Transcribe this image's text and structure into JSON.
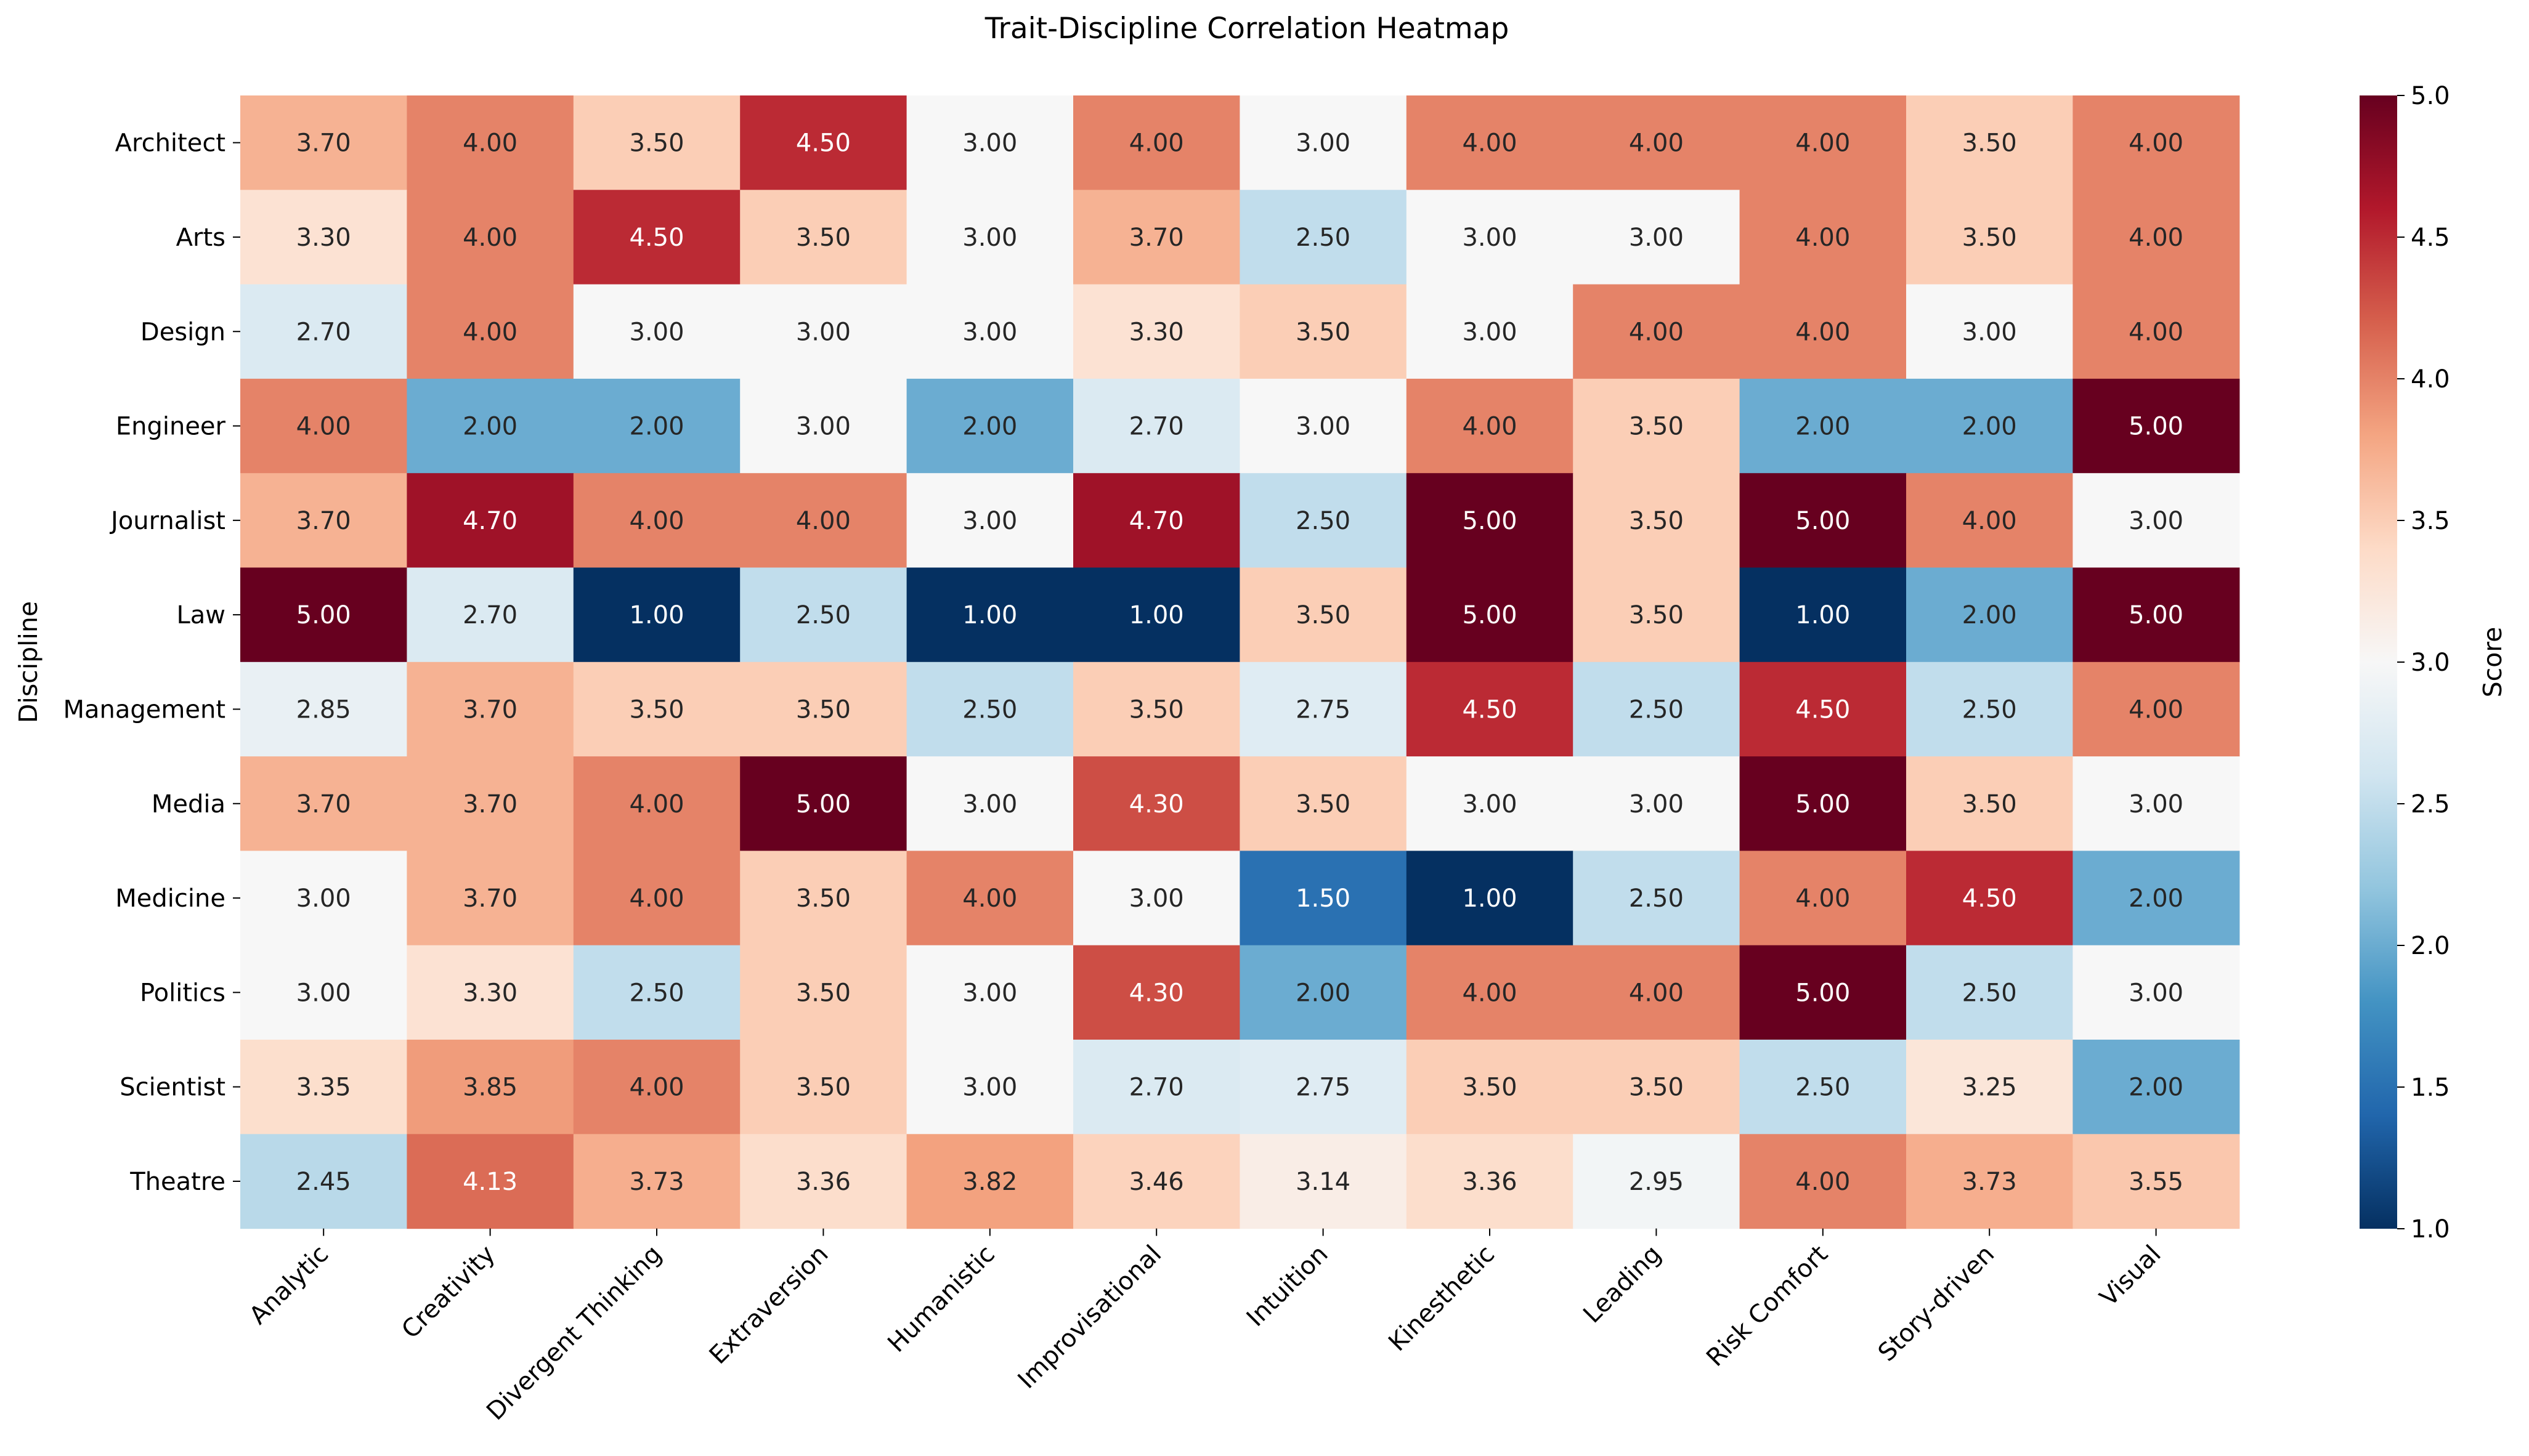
{
  "chart_data": {
    "type": "heatmap",
    "title": "Trait-Discipline Correlation Heatmap",
    "xlabel": "",
    "ylabel": "Discipline",
    "colorbar_label": "Score",
    "colormap": "RdBu_r",
    "vmin": 1.0,
    "vmax": 5.0,
    "colorbar_ticks": [
      "1.0",
      "1.5",
      "2.0",
      "2.5",
      "3.0",
      "3.5",
      "4.0",
      "4.5",
      "5.0"
    ],
    "x_categories": [
      "Analytic",
      "Creativity",
      "Divergent Thinking",
      "Extraversion",
      "Humanistic",
      "Improvisational",
      "Intuition",
      "Kinesthetic",
      "Leading",
      "Risk Comfort",
      "Story-driven",
      "Visual"
    ],
    "y_categories": [
      "Architect",
      "Arts",
      "Design",
      "Engineer",
      "Journalist",
      "Law",
      "Management",
      "Media",
      "Medicine",
      "Politics",
      "Scientist",
      "Theatre"
    ],
    "values": [
      [
        3.7,
        4.0,
        3.5,
        4.5,
        3.0,
        4.0,
        3.0,
        4.0,
        4.0,
        4.0,
        3.5,
        4.0
      ],
      [
        3.3,
        4.0,
        4.5,
        3.5,
        3.0,
        3.7,
        2.5,
        3.0,
        3.0,
        4.0,
        3.5,
        4.0
      ],
      [
        2.7,
        4.0,
        3.0,
        3.0,
        3.0,
        3.3,
        3.5,
        3.0,
        4.0,
        4.0,
        3.0,
        4.0
      ],
      [
        4.0,
        2.0,
        2.0,
        3.0,
        2.0,
        2.7,
        3.0,
        4.0,
        3.5,
        2.0,
        2.0,
        5.0
      ],
      [
        3.7,
        4.7,
        4.0,
        4.0,
        3.0,
        4.7,
        2.5,
        5.0,
        3.5,
        5.0,
        4.0,
        3.0
      ],
      [
        5.0,
        2.7,
        1.0,
        2.5,
        1.0,
        1.0,
        3.5,
        5.0,
        3.5,
        1.0,
        2.0,
        5.0
      ],
      [
        2.85,
        3.7,
        3.5,
        3.5,
        2.5,
        3.5,
        2.75,
        4.5,
        2.5,
        4.5,
        2.5,
        4.0
      ],
      [
        3.7,
        3.7,
        4.0,
        5.0,
        3.0,
        4.3,
        3.5,
        3.0,
        3.0,
        5.0,
        3.5,
        3.0
      ],
      [
        3.0,
        3.7,
        4.0,
        3.5,
        4.0,
        3.0,
        1.5,
        1.0,
        2.5,
        4.0,
        4.5,
        2.0
      ],
      [
        3.0,
        3.3,
        2.5,
        3.5,
        3.0,
        4.3,
        2.0,
        4.0,
        4.0,
        5.0,
        2.5,
        3.0
      ],
      [
        3.35,
        3.85,
        4.0,
        3.5,
        3.0,
        2.7,
        2.75,
        3.5,
        3.5,
        2.5,
        3.25,
        2.0
      ],
      [
        2.45,
        4.13,
        3.73,
        3.36,
        3.82,
        3.46,
        3.14,
        3.36,
        2.95,
        4.0,
        3.73,
        3.55
      ]
    ],
    "annotation_format": "2 decimals",
    "grid": false
  }
}
